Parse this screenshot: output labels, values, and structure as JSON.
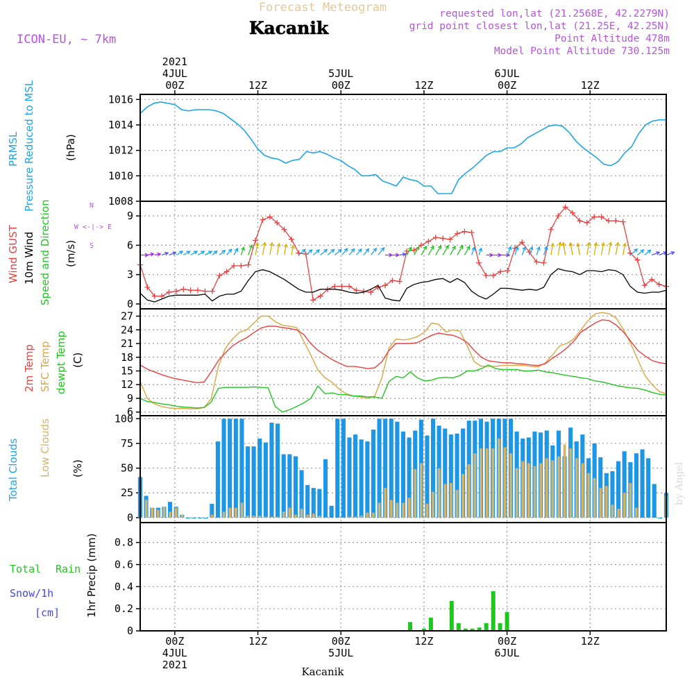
{
  "header": {
    "brand": "Forecast Meteogram",
    "place": "Kacanik",
    "model": "ICON-EU, ~ 7km",
    "requested": "requested lon,lat (21.2568E, 42.2279N)",
    "grid_point": "grid point closest lon,lat (21.25E, 42.25N)",
    "point_alt": "Point Altitude 478m",
    "model_alt": "Model Point Altitude 730.125m",
    "footer_place": "Kacanik",
    "credit": "by Angel"
  },
  "colors": {
    "pressure": "#1ea5e6",
    "gust": "#e84040",
    "wind": "#000000",
    "temp": "#e84040",
    "sfc": "#d9a640",
    "dew": "#22c422",
    "total_clouds": "#1e96e6",
    "low_clouds": "#d2b46e",
    "rain": "#22c422",
    "snow": "#4646e6",
    "header_purple": "#b455dc",
    "brand": "#e6c896"
  },
  "time_axis": {
    "top_labels": [
      {
        "h": 0,
        "lines": [
          "2021",
          "4JUL",
          "00Z"
        ]
      },
      {
        "h": 12,
        "lines": [
          "12Z"
        ]
      },
      {
        "h": 24,
        "lines": [
          "5JUL",
          "00Z"
        ]
      },
      {
        "h": 36,
        "lines": [
          "12Z"
        ]
      },
      {
        "h": 48,
        "lines": [
          "6JUL",
          "00Z"
        ]
      },
      {
        "h": 60,
        "lines": [
          "12Z"
        ]
      }
    ],
    "bottom_labels": [
      {
        "h": 0,
        "lines": [
          "00Z",
          "4JUL",
          "2021"
        ]
      },
      {
        "h": 12,
        "lines": [
          "12Z"
        ]
      },
      {
        "h": 24,
        "lines": [
          "00Z",
          "5JUL"
        ]
      },
      {
        "h": 36,
        "lines": [
          "12Z"
        ]
      },
      {
        "h": 48,
        "lines": [
          "00Z",
          "6JUL"
        ]
      },
      {
        "h": 60,
        "lines": [
          "12Z"
        ]
      }
    ]
  },
  "chart_data": [
    {
      "type": "line",
      "panel": "pressure",
      "labels": {
        "left1": "PRMSL",
        "left2": "Pressure Reduced to MSL",
        "unit": "(hPa)"
      },
      "yticks": [
        1008,
        1010,
        1012,
        1014,
        1016
      ],
      "ylim": [
        1008,
        1016.4
      ],
      "series": [
        {
          "color_key": "pressure",
          "points": [
            [
              -5,
              1014.9
            ],
            [
              -4,
              1015.4
            ],
            [
              -3,
              1015.7
            ],
            [
              -2,
              1015.8
            ],
            [
              -1,
              1015.7
            ],
            [
              0,
              1015.6
            ],
            [
              1,
              1015.2
            ],
            [
              2,
              1015.1
            ],
            [
              3,
              1015.2
            ],
            [
              4,
              1015.2
            ],
            [
              5,
              1015.2
            ],
            [
              6,
              1015.1
            ],
            [
              7,
              1014.9
            ],
            [
              8,
              1014.5
            ],
            [
              9,
              1014.1
            ],
            [
              10,
              1013.6
            ],
            [
              11,
              1012.9
            ],
            [
              12,
              1012.1
            ],
            [
              13,
              1011.6
            ],
            [
              14,
              1011.4
            ],
            [
              15,
              1011.3
            ],
            [
              16,
              1011.0
            ],
            [
              17,
              1011.2
            ],
            [
              18,
              1011.3
            ],
            [
              19,
              1011.9
            ],
            [
              20,
              1011.8
            ],
            [
              21,
              1011.9
            ],
            [
              22,
              1011.7
            ],
            [
              23,
              1011.4
            ],
            [
              24,
              1011.2
            ],
            [
              25,
              1010.8
            ],
            [
              26,
              1010.5
            ],
            [
              27,
              1010.0
            ],
            [
              28,
              1010.0
            ],
            [
              29,
              1010.1
            ],
            [
              30,
              1009.6
            ],
            [
              31,
              1009.4
            ],
            [
              32,
              1009.2
            ],
            [
              33,
              1009.9
            ],
            [
              34,
              1009.7
            ],
            [
              35,
              1009.6
            ],
            [
              36,
              1009.2
            ],
            [
              37,
              1009.2
            ],
            [
              38,
              1008.6
            ],
            [
              39,
              1008.6
            ],
            [
              40,
              1008.6
            ],
            [
              41,
              1009.7
            ],
            [
              42,
              1010.2
            ],
            [
              43,
              1010.6
            ],
            [
              44,
              1011.1
            ],
            [
              45,
              1011.6
            ],
            [
              46,
              1011.9
            ],
            [
              47,
              1011.9
            ],
            [
              48,
              1012.2
            ],
            [
              49,
              1012.2
            ],
            [
              50,
              1012.5
            ],
            [
              51,
              1013.0
            ],
            [
              52,
              1013.3
            ],
            [
              53,
              1013.6
            ],
            [
              54,
              1013.9
            ],
            [
              55,
              1014.0
            ],
            [
              56,
              1013.9
            ],
            [
              57,
              1013.4
            ],
            [
              58,
              1012.7
            ],
            [
              59,
              1012.2
            ],
            [
              60,
              1011.8
            ],
            [
              61,
              1011.4
            ],
            [
              62,
              1010.9
            ],
            [
              63,
              1010.8
            ],
            [
              64,
              1011.1
            ],
            [
              65,
              1011.8
            ],
            [
              66,
              1012.3
            ],
            [
              67,
              1013.3
            ],
            [
              68,
              1014.0
            ],
            [
              69,
              1014.3
            ],
            [
              70,
              1014.4
            ],
            [
              71,
              1014.4
            ]
          ]
        }
      ]
    },
    {
      "type": "line",
      "panel": "wind",
      "labels": {
        "left1": "Wind GUST",
        "left2": "10m Wind",
        "left3": "Speed and Direction",
        "unit": "(m/s)",
        "compass": [
          "N",
          "W <-|-> E",
          "S"
        ]
      },
      "yticks": [
        0,
        3,
        6,
        9
      ],
      "ylim": [
        -0.5,
        10.5
      ],
      "gust": [
        4.0,
        1.7,
        0.8,
        0.8,
        1.2,
        1.3,
        1.5,
        1.4,
        1.4,
        1.3,
        1.3,
        2.9,
        3.3,
        3.9,
        3.9,
        4.0,
        6.5,
        8.6,
        8.9,
        8.3,
        7.6,
        6.6,
        5.2,
        5.1,
        0.4,
        0.8,
        1.5,
        1.8,
        1.8,
        1.8,
        1.4,
        1.3,
        1.2,
        1.7,
        1.9,
        2.4,
        2.3,
        5.4,
        5.5,
        6.0,
        6.4,
        6.8,
        6.7,
        6.6,
        7.2,
        7.4,
        7.3,
        4.2,
        2.9,
        2.9,
        3.3,
        3.4,
        5.7,
        6.3,
        5.3,
        4.3,
        4.2,
        7.6,
        9.0,
        9.9,
        9.3,
        8.5,
        8.3,
        8.9,
        8.9,
        8.5,
        8.5,
        8.4,
        5.2,
        4.5,
        1.9,
        2.5,
        2.0,
        1.8
      ],
      "wind": [
        1.1,
        0.4,
        0.2,
        0.5,
        0.8,
        0.9,
        0.9,
        0.9,
        0.9,
        1.0,
        0.3,
        0.8,
        1.0,
        1.0,
        1.3,
        2.4,
        3.3,
        3.5,
        3.3,
        2.9,
        2.5,
        2.0,
        1.5,
        1.2,
        1.2,
        1.5,
        1.5,
        1.5,
        1.4,
        1.2,
        1.1,
        1.2,
        1.5,
        1.9,
        0.6,
        0.4,
        0.3,
        1.6,
        2.0,
        2.2,
        2.3,
        2.5,
        2.6,
        2.2,
        2.6,
        2.2,
        1.3,
        0.8,
        0.5,
        1.0,
        1.6,
        1.6,
        1.5,
        1.4,
        1.5,
        1.4,
        1.7,
        3.0,
        3.6,
        3.4,
        3.3,
        3.0,
        3.4,
        3.4,
        3.3,
        3.5,
        3.4,
        3.0,
        1.8,
        1.2,
        1.1,
        1.2,
        1.2,
        1.4
      ],
      "arrow_colors": [
        "#a020f0",
        "#a020f0",
        "#a020f0",
        "#5050f0",
        "#5050f0",
        "#1ea5e6",
        "#1ea5e6",
        "#1ea5e6",
        "#1ea5e6",
        "#1ea5e6",
        "#1ea5e6",
        "#1ea5e6",
        "#1ea5e6",
        "#1ea5e6",
        "#22c422",
        "#22c422",
        "#d2b400",
        "#d2b400",
        "#d2b400",
        "#d2b400",
        "#d2b400",
        "#d2b400",
        "#1ea5e6",
        "#1ea5e6",
        "#1ea5e6",
        "#1ea5e6",
        "#1ea5e6",
        "#1ea5e6",
        "#1ea5e6",
        "#1ea5e6",
        "#1ea5e6",
        "#1ea5e6",
        "#1ea5e6",
        "#1ea5e6",
        "#a020f0",
        "#a020f0",
        "#5050f0",
        "#22c422",
        "#22c422",
        "#22c422",
        "#22c422",
        "#22c422",
        "#22c422",
        "#22c422",
        "#22c422",
        "#22c422",
        "#1ea5e6",
        "#1ea5e6",
        "#a020f0",
        "#a020f0",
        "#a020f0",
        "#1ea5e6",
        "#1ea5e6",
        "#1ea5e6",
        "#1ea5e6",
        "#1ea5e6",
        "#1ea5e6",
        "#d2b400",
        "#d2b400",
        "#e6a000",
        "#e6a000",
        "#e6a000",
        "#d2b400",
        "#d2b400",
        "#d2b400",
        "#d2b400",
        "#d2b400",
        "#d2b400",
        "#1ea5e6",
        "#1ea5e6",
        "#1ea5e6",
        "#5050f0",
        "#5050f0",
        "#5050f0"
      ],
      "arrow_dirs": [
        270,
        260,
        260,
        250,
        250,
        240,
        240,
        240,
        240,
        240,
        230,
        230,
        220,
        210,
        200,
        200,
        190,
        190,
        190,
        190,
        190,
        190,
        230,
        230,
        230,
        230,
        230,
        230,
        220,
        220,
        220,
        220,
        220,
        220,
        270,
        270,
        260,
        210,
        210,
        210,
        210,
        210,
        210,
        210,
        210,
        210,
        200,
        200,
        270,
        270,
        270,
        200,
        200,
        200,
        200,
        200,
        200,
        190,
        190,
        170,
        170,
        170,
        190,
        190,
        190,
        190,
        190,
        190,
        230,
        230,
        230,
        250,
        250,
        250
      ]
    },
    {
      "type": "line",
      "panel": "temperature",
      "labels": {
        "left1": "2m Temp",
        "left2": "SFC Temp",
        "left3": "dewpt Temp",
        "unit": "(C)"
      },
      "yticks": [
        6,
        9,
        12,
        15,
        18,
        21,
        24,
        27
      ],
      "ylim": [
        5.2,
        28.6
      ],
      "temp": [
        16.3,
        15.4,
        14.8,
        14.2,
        13.7,
        13.3,
        13.0,
        12.7,
        12.4,
        12.6,
        14.8,
        17.3,
        19.0,
        20.5,
        21.5,
        22.3,
        23.4,
        24.4,
        24.8,
        24.8,
        24.5,
        24.3,
        24.0,
        23.0,
        21.0,
        19.5,
        18.5,
        17.5,
        16.7,
        16.0,
        16.0,
        15.8,
        15.5,
        15.7,
        17.0,
        19.5,
        21.0,
        21.0,
        21.0,
        21.2,
        22.0,
        22.8,
        23.3,
        23.0,
        22.8,
        22.2,
        21.2,
        19.5,
        18.0,
        17.2,
        17.0,
        16.8,
        16.8,
        16.6,
        16.5,
        16.3,
        16.2,
        16.6,
        17.8,
        18.8,
        20.0,
        21.5,
        23.5,
        24.5,
        25.5,
        26.2,
        26.0,
        25.0,
        23.5,
        21.5,
        19.5,
        18.3,
        17.3,
        16.8,
        16.6
      ],
      "sfc": [
        12.7,
        9.0,
        7.8,
        7.2,
        6.9,
        6.8,
        6.8,
        6.7,
        6.7,
        7.0,
        9.0,
        16.0,
        20.0,
        22.0,
        23.5,
        24.0,
        25.5,
        27.0,
        27.0,
        25.8,
        25.0,
        24.8,
        24.5,
        21.5,
        18.5,
        15.2,
        13.5,
        12.5,
        11.0,
        10.0,
        9.5,
        9.3,
        9.0,
        9.5,
        13.5,
        20.0,
        22.0,
        21.8,
        22.0,
        22.5,
        23.5,
        25.5,
        25.2,
        23.5,
        24.0,
        23.7,
        20.5,
        17.0,
        16.0,
        16.0,
        16.0,
        16.2,
        16.2,
        16.2,
        16.2,
        16.0,
        15.9,
        16.8,
        18.5,
        20.5,
        21.0,
        22.0,
        24.0,
        26.0,
        27.5,
        27.8,
        27.5,
        26.5,
        24.0,
        21.0,
        17.5,
        14.0,
        12.0,
        10.5,
        10.0
      ],
      "dew": [
        9.0,
        8.3,
        8.1,
        7.8,
        7.6,
        7.3,
        7.1,
        7.0,
        6.9,
        7.0,
        8.2,
        11.2,
        11.4,
        11.4,
        11.4,
        11.4,
        11.5,
        11.4,
        11.3,
        7.2,
        6.0,
        6.5,
        7.2,
        8.0,
        9.0,
        11.7,
        10.0,
        10.2,
        9.8,
        9.8,
        9.5,
        9.5,
        9.3,
        9.3,
        9.0,
        12.7,
        13.8,
        13.5,
        14.8,
        13.5,
        12.8,
        13.0,
        13.5,
        13.6,
        13.5,
        14.0,
        15.0,
        15.0,
        15.5,
        16.3,
        15.5,
        15.3,
        15.3,
        15.3,
        15.0,
        15.0,
        15.2,
        14.8,
        14.6,
        14.3,
        14.0,
        13.8,
        13.5,
        13.3,
        12.8,
        12.6,
        12.2,
        11.8,
        11.5,
        11.3,
        11.2,
        10.8,
        10.3,
        9.9,
        9.7
      ],
      "start_h": -5
    },
    {
      "type": "bar",
      "panel": "clouds",
      "labels": {
        "left1": "Total Clouds",
        "left2": "Low Clouds",
        "unit": "(%)"
      },
      "yticks": [
        0,
        25,
        50,
        75,
        100
      ],
      "ylim": [
        -5,
        103
      ],
      "start_h": -5,
      "total": [
        41,
        22,
        10,
        10,
        11,
        16,
        11,
        3,
        0,
        0,
        0,
        0,
        14,
        77,
        100,
        100,
        100,
        100,
        72,
        72,
        80,
        76,
        96,
        95,
        64,
        64,
        62,
        48,
        33,
        30,
        29,
        59,
        12,
        100,
        100,
        81,
        84,
        79,
        77,
        89,
        100,
        100,
        100,
        97,
        87,
        81,
        88,
        99,
        83,
        100,
        93,
        90,
        84,
        85,
        90,
        98,
        98,
        100,
        97,
        100,
        100,
        100,
        100,
        87,
        80,
        81,
        87,
        86,
        88,
        73,
        88,
        62,
        91,
        77,
        84,
        60,
        75,
        61,
        45,
        47,
        57,
        67,
        56,
        65,
        69,
        60,
        34,
        0,
        25
      ],
      "low": [
        0,
        18,
        10,
        8,
        11,
        6,
        10,
        3,
        0,
        0,
        0,
        0,
        3,
        0,
        6,
        10,
        10,
        15,
        2,
        2,
        2,
        1,
        1,
        1,
        6,
        10,
        3,
        9,
        3,
        4,
        2,
        0,
        0,
        0,
        0,
        1,
        1,
        2,
        5,
        5,
        15,
        30,
        18,
        15,
        15,
        20,
        49,
        55,
        14,
        26,
        50,
        34,
        35,
        28,
        44,
        54,
        65,
        70,
        70,
        70,
        80,
        71,
        65,
        50,
        57,
        55,
        52,
        55,
        60,
        58,
        62,
        74,
        70,
        60,
        55,
        45,
        40,
        30,
        32,
        13,
        9,
        25,
        35,
        10,
        0,
        0,
        0,
        0,
        22
      ]
    },
    {
      "type": "bar",
      "panel": "precipitation",
      "labels": {
        "left1": "Total",
        "left2": "Rain",
        "left3": "Snow/1h",
        "left4": "[cm]",
        "unit": "1hr Precip (mm)"
      },
      "yticks": [
        0,
        0.2,
        0.4,
        0.6,
        0.8
      ],
      "ylim": [
        0,
        0.98
      ],
      "rain": [
        [
          30,
          0.002
        ],
        [
          34,
          0.08
        ],
        [
          36,
          0.02
        ],
        [
          37,
          0.12
        ],
        [
          40,
          0.27
        ],
        [
          41,
          0.07
        ],
        [
          42,
          0.02
        ],
        [
          43,
          0.02
        ],
        [
          44,
          0.03
        ],
        [
          45,
          0.07
        ],
        [
          46,
          0.36
        ],
        [
          47,
          0.07
        ],
        [
          48,
          0.17
        ]
      ]
    }
  ]
}
